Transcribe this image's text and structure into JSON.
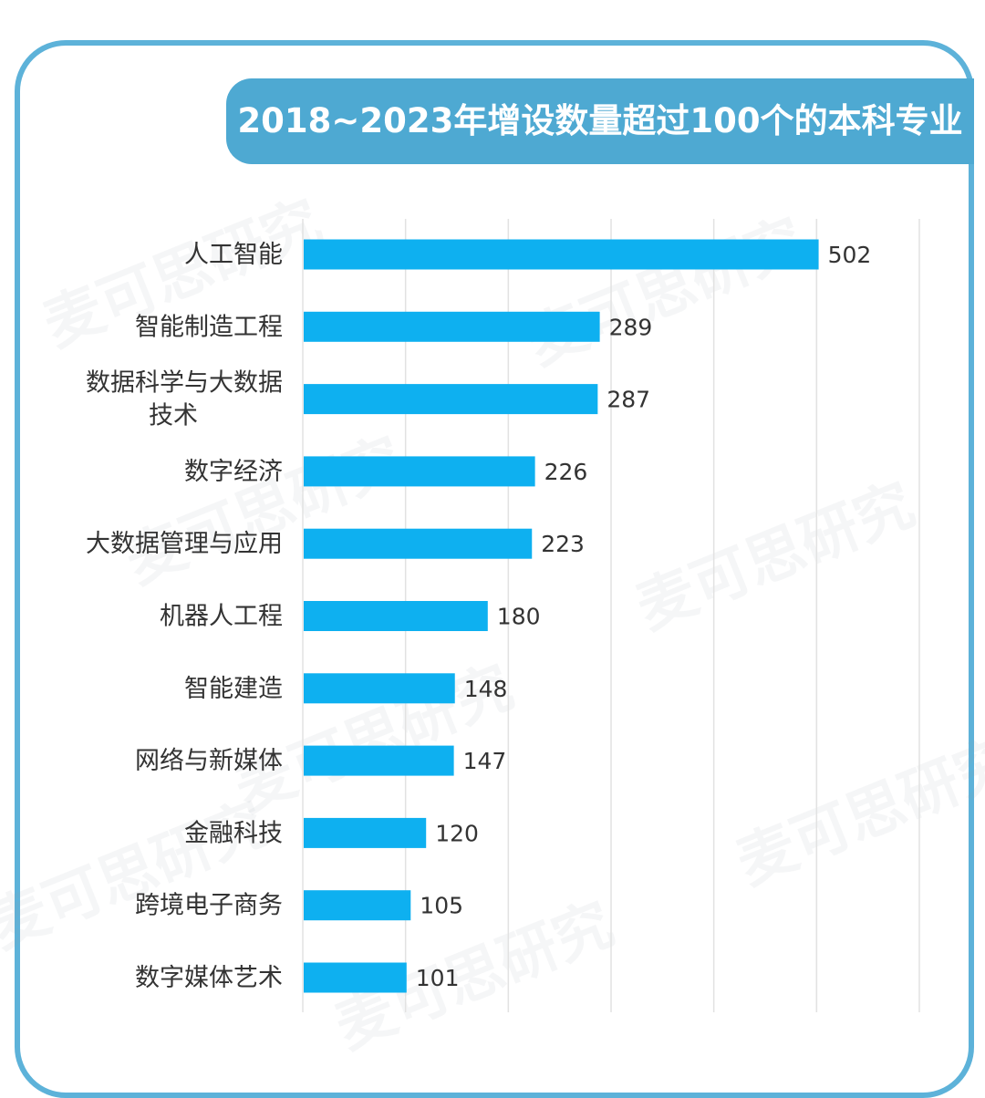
{
  "chart_data": {
    "type": "bar",
    "orientation": "horizontal",
    "title": "2018~2023年增设数量超过100个的本科专业",
    "categories": [
      [
        "人工智能"
      ],
      [
        "智能制造工程"
      ],
      [
        "数据科学与大数据",
        "技术"
      ],
      [
        "数字经济"
      ],
      [
        "大数据管理与应用"
      ],
      [
        "机器人工程"
      ],
      [
        "智能建造"
      ],
      [
        "网络与新媒体"
      ],
      [
        "金融科技"
      ],
      [
        "跨境电子商务"
      ],
      [
        "数字媒体艺术"
      ]
    ],
    "values": [
      502,
      289,
      287,
      226,
      223,
      180,
      148,
      147,
      120,
      105,
      101
    ],
    "xlim": [
      0,
      600
    ],
    "grid": true,
    "bar_color": "#0eb0f0"
  },
  "watermark": "麦可思研究"
}
